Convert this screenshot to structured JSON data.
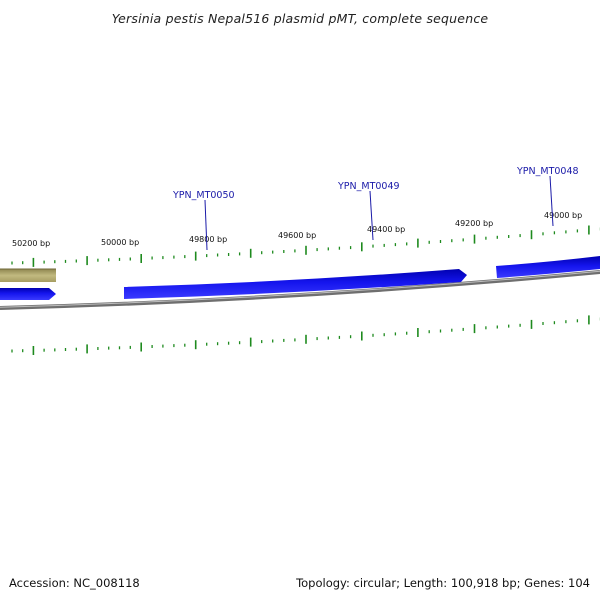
{
  "title": "Yersinia pestis Nepal516 plasmid pMT, complete sequence",
  "footer": {
    "accession": "Accession: NC_008118",
    "summary": "Topology: circular; Length: 100,918 bp; Genes: 104"
  },
  "position_labels": [
    "50200 bp",
    "50000 bp",
    "49800 bp",
    "49600 bp",
    "49400 bp",
    "49200 bp",
    "49000 bp"
  ],
  "genes": [
    "YPN_MT0050",
    "YPN_MT0049",
    "YPN_MT0048"
  ],
  "colors": {
    "gene_arrow": "#1010e0",
    "other_feature": "#b5ad72",
    "backbone": "#8c8c8c",
    "tick": "#1e8a1e",
    "gene_label": "#1a1aa8"
  }
}
